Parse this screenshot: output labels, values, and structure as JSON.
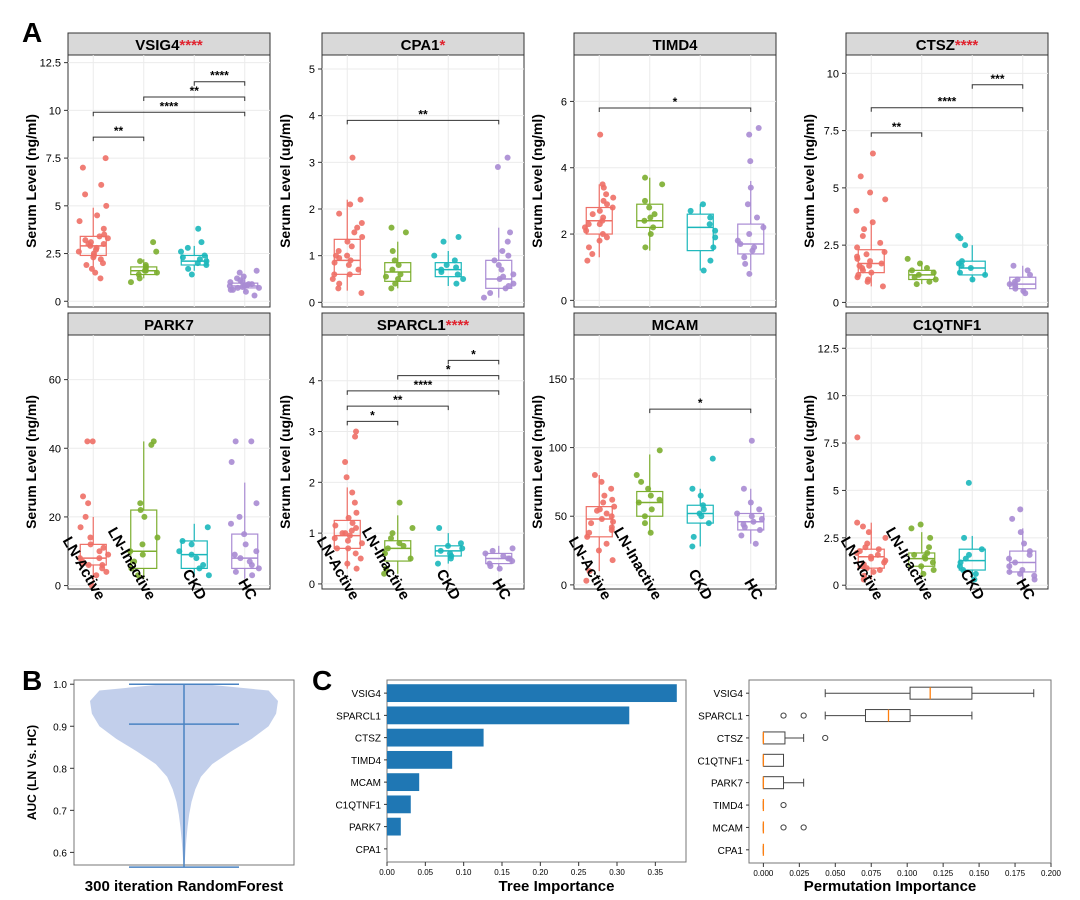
{
  "panels": {
    "a": "A",
    "b": "B",
    "c": "C"
  },
  "colors": {
    "LN-Active": "#ee6f66",
    "LN-Inactive": "#7cae2f",
    "CKD": "#1bb7bb",
    "HC": "#a98bd3",
    "strip": "#d9d9d9",
    "violin": "#b7c7e8",
    "violin_line": "#4a83c2",
    "bar": "#1f77b4",
    "median": "#ff7f0e",
    "sig_star": "#e0242f"
  },
  "chart_data": [
    {
      "type": "box",
      "title": "VSIG4",
      "sig": "****",
      "ylabel": "Serum Level (ng/ml)",
      "ylim": [
        -0.3,
        12.9
      ],
      "yticks": [
        0,
        2.5,
        5,
        7.5,
        10,
        12.5
      ],
      "ytick_labels": [
        "0",
        "2.5",
        "5",
        "7.5",
        "10",
        "12.5"
      ],
      "categories": [
        "LN-Active",
        "LN-Inactive",
        "CKD",
        "HC"
      ],
      "boxes": [
        [
          1.8,
          2.4,
          2.9,
          3.4,
          4.9
        ],
        [
          1.2,
          1.4,
          1.6,
          1.8,
          2.2
        ],
        [
          1.6,
          1.9,
          2.1,
          2.4,
          2.9
        ],
        [
          0.5,
          0.7,
          0.8,
          0.95,
          1.3
        ]
      ],
      "points": [
        [
          1.2,
          1.5,
          1.7,
          1.9,
          2.0,
          2.2,
          2.3,
          2.4,
          2.5,
          2.6,
          2.7,
          2.8,
          2.9,
          3.0,
          3.0,
          3.1,
          3.2,
          3.3,
          3.4,
          3.5,
          3.8,
          4.2,
          4.5,
          5.0,
          5.6,
          6.1,
          7.0,
          7.5
        ],
        [
          1.0,
          1.2,
          1.4,
          1.5,
          1.6,
          1.6,
          1.7,
          1.8,
          1.9,
          2.1,
          2.6,
          3.1
        ],
        [
          1.4,
          1.7,
          1.9,
          2.0,
          2.1,
          2.2,
          2.3,
          2.4,
          2.6,
          2.8,
          3.1,
          3.8
        ],
        [
          0.3,
          0.5,
          0.6,
          0.6,
          0.7,
          0.7,
          0.75,
          0.8,
          0.8,
          0.85,
          0.9,
          0.9,
          1.0,
          1.0,
          1.1,
          1.2,
          1.3,
          1.5,
          1.6
        ]
      ],
      "brackets": [
        {
          "from": 0,
          "to": 1,
          "y": 8.6,
          "label": "**"
        },
        {
          "from": 0,
          "to": 3,
          "y": 9.9,
          "label": "****"
        },
        {
          "from": 1,
          "to": 3,
          "y": 10.7,
          "label": "**"
        },
        {
          "from": 2,
          "to": 3,
          "y": 11.5,
          "label": "****"
        }
      ]
    },
    {
      "type": "box",
      "title": "CPA1",
      "sig": "*",
      "ylabel": "Serum Level (ug/ml)",
      "ylim": [
        -0.1,
        5.3
      ],
      "yticks": [
        0,
        1,
        2,
        3,
        4,
        5
      ],
      "ytick_labels": [
        "0",
        "1",
        "2",
        "3",
        "4",
        "5"
      ],
      "categories": [
        "LN-Active",
        "LN-Inactive",
        "CKD",
        "HC"
      ],
      "boxes": [
        [
          0.25,
          0.6,
          0.9,
          1.35,
          2.2
        ],
        [
          0.3,
          0.45,
          0.65,
          0.85,
          1.3
        ],
        [
          0.35,
          0.55,
          0.7,
          0.85,
          1.1
        ],
        [
          0.1,
          0.3,
          0.5,
          0.9,
          1.6
        ]
      ],
      "points": [
        [
          0.2,
          0.3,
          0.4,
          0.5,
          0.6,
          0.6,
          0.7,
          0.8,
          0.85,
          0.9,
          0.95,
          1.0,
          1.0,
          1.1,
          1.2,
          1.3,
          1.4,
          1.5,
          1.6,
          1.7,
          1.9,
          2.1,
          2.2,
          3.1
        ],
        [
          0.3,
          0.4,
          0.5,
          0.55,
          0.6,
          0.7,
          0.8,
          0.9,
          1.1,
          1.5,
          1.6
        ],
        [
          0.4,
          0.5,
          0.6,
          0.65,
          0.7,
          0.75,
          0.8,
          0.9,
          1.0,
          1.3,
          1.4
        ],
        [
          0.1,
          0.2,
          0.3,
          0.35,
          0.4,
          0.5,
          0.55,
          0.6,
          0.7,
          0.8,
          0.9,
          1.0,
          1.1,
          1.3,
          1.5,
          2.9,
          3.1
        ]
      ],
      "brackets": [
        {
          "from": 0,
          "to": 3,
          "y": 3.9,
          "label": "**"
        }
      ]
    },
    {
      "type": "box",
      "title": "TIMD4",
      "sig": "",
      "ylabel": "Serum Level (ng/ml)",
      "ylim": [
        -0.2,
        7.4
      ],
      "yticks": [
        0,
        2,
        4,
        6
      ],
      "ytick_labels": [
        "0",
        "2",
        "4",
        "6"
      ],
      "categories": [
        "LN-Active",
        "LN-Inactive",
        "CKD",
        "HC"
      ],
      "boxes": [
        [
          1.3,
          2.0,
          2.4,
          2.8,
          3.5
        ],
        [
          1.5,
          2.2,
          2.4,
          2.9,
          3.7
        ],
        [
          0.9,
          1.5,
          2.2,
          2.6,
          2.9
        ],
        [
          0.9,
          1.4,
          1.7,
          2.3,
          3.6
        ]
      ],
      "points": [
        [
          1.2,
          1.4,
          1.6,
          1.8,
          1.9,
          2.0,
          2.1,
          2.2,
          2.3,
          2.3,
          2.4,
          2.5,
          2.6,
          2.7,
          2.8,
          2.9,
          3.0,
          3.1,
          3.2,
          3.4,
          3.5,
          5.0
        ],
        [
          1.6,
          2.0,
          2.2,
          2.4,
          2.5,
          2.6,
          2.8,
          3.0,
          3.5,
          3.7
        ],
        [
          0.9,
          1.2,
          1.6,
          1.9,
          2.1,
          2.3,
          2.5,
          2.7,
          2.9
        ],
        [
          0.8,
          1.1,
          1.3,
          1.5,
          1.6,
          1.7,
          1.8,
          2.0,
          2.2,
          2.5,
          2.9,
          3.4,
          4.2,
          5.0,
          5.2
        ]
      ],
      "brackets": [
        {
          "from": 0,
          "to": 3,
          "y": 5.8,
          "label": "*"
        }
      ]
    },
    {
      "type": "box",
      "title": "CTSZ",
      "sig": "****",
      "ylabel": "Serum Level (ng/ml)",
      "ylim": [
        -0.2,
        10.8
      ],
      "yticks": [
        0,
        2.5,
        5,
        7.5,
        10
      ],
      "ytick_labels": [
        "0",
        "2.5",
        "5",
        "7.5",
        "10"
      ],
      "categories": [
        "LN-Active",
        "LN-Inactive",
        "CKD",
        "HC"
      ],
      "boxes": [
        [
          0.7,
          1.3,
          1.7,
          2.3,
          3.6
        ],
        [
          0.8,
          1.0,
          1.2,
          1.4,
          1.8
        ],
        [
          0.9,
          1.2,
          1.5,
          1.8,
          2.5
        ],
        [
          0.4,
          0.6,
          0.8,
          1.1,
          1.6
        ]
      ],
      "points": [
        [
          0.7,
          0.9,
          1.0,
          1.1,
          1.2,
          1.3,
          1.4,
          1.5,
          1.6,
          1.6,
          1.7,
          1.8,
          1.9,
          2.0,
          2.1,
          2.2,
          2.4,
          2.6,
          2.9,
          3.2,
          3.5,
          4.0,
          4.5,
          4.8,
          5.5,
          6.5
        ],
        [
          0.8,
          0.9,
          1.0,
          1.1,
          1.2,
          1.3,
          1.4,
          1.5,
          1.7,
          1.9
        ],
        [
          1.0,
          1.2,
          1.3,
          1.5,
          1.6,
          1.7,
          1.8,
          2.5,
          2.8,
          2.9
        ],
        [
          0.4,
          0.5,
          0.6,
          0.7,
          0.8,
          0.8,
          0.9,
          1.0,
          1.2,
          1.4,
          1.6
        ]
      ],
      "brackets": [
        {
          "from": 0,
          "to": 1,
          "y": 7.4,
          "label": "**"
        },
        {
          "from": 0,
          "to": 3,
          "y": 8.5,
          "label": "****"
        },
        {
          "from": 2,
          "to": 3,
          "y": 9.5,
          "label": "***"
        }
      ]
    },
    {
      "type": "box",
      "title": "PARK7",
      "sig": "",
      "ylabel": "Serum Level (ng/ml)",
      "ylim": [
        -1,
        73
      ],
      "yticks": [
        0,
        20,
        40,
        60
      ],
      "ytick_labels": [
        "0",
        "20",
        "40",
        "60"
      ],
      "categories": [
        "LN-Active",
        "LN-Inactive",
        "CKD",
        "HC"
      ],
      "boxes": [
        [
          1,
          6,
          8,
          12,
          20
        ],
        [
          2,
          5,
          10,
          22,
          42
        ],
        [
          3,
          5,
          9,
          13,
          18
        ],
        [
          2,
          5,
          8,
          15,
          30
        ]
      ],
      "points": [
        [
          0,
          3,
          4,
          5,
          6,
          6,
          7,
          8,
          8,
          9,
          10,
          11,
          12,
          14,
          17,
          20,
          24,
          26,
          42,
          42
        ],
        [
          3,
          5,
          7,
          9,
          10,
          12,
          14,
          20,
          22,
          24,
          41,
          42
        ],
        [
          3,
          5,
          6,
          8,
          9,
          10,
          12,
          13,
          17
        ],
        [
          3,
          4,
          5,
          6,
          7,
          8,
          9,
          10,
          12,
          15,
          18,
          20,
          24,
          36,
          42,
          42
        ]
      ],
      "brackets": []
    },
    {
      "type": "box",
      "title": "SPARCL1",
      "sig": "****",
      "ylabel": "Serum Level (ug/ml)",
      "ylim": [
        -0.1,
        4.9
      ],
      "yticks": [
        0,
        1,
        2,
        3,
        4
      ],
      "ytick_labels": [
        "0",
        "1",
        "2",
        "3",
        "4"
      ],
      "categories": [
        "LN-Active",
        "LN-Inactive",
        "CKD",
        "HC"
      ],
      "boxes": [
        [
          0.3,
          0.7,
          0.95,
          1.25,
          1.9
        ],
        [
          0.2,
          0.45,
          0.7,
          0.85,
          1.35
        ],
        [
          0.4,
          0.55,
          0.65,
          0.75,
          1.0
        ],
        [
          0.25,
          0.4,
          0.5,
          0.6,
          0.75
        ]
      ],
      "points": [
        [
          0.3,
          0.4,
          0.5,
          0.6,
          0.7,
          0.7,
          0.8,
          0.85,
          0.9,
          0.95,
          1.0,
          1.0,
          1.05,
          1.1,
          1.15,
          1.2,
          1.3,
          1.4,
          1.6,
          1.8,
          2.1,
          2.4,
          2.9,
          3.0
        ],
        [
          0.2,
          0.3,
          0.5,
          0.6,
          0.7,
          0.75,
          0.8,
          0.9,
          1.0,
          1.1,
          1.6
        ],
        [
          0.4,
          0.5,
          0.55,
          0.6,
          0.65,
          0.7,
          0.75,
          0.8,
          1.1
        ],
        [
          0.3,
          0.35,
          0.4,
          0.45,
          0.5,
          0.5,
          0.55,
          0.6,
          0.65,
          0.7
        ]
      ],
      "brackets": [
        {
          "from": 0,
          "to": 1,
          "y": 3.2,
          "label": "*"
        },
        {
          "from": 0,
          "to": 2,
          "y": 3.5,
          "label": "**"
        },
        {
          "from": 0,
          "to": 3,
          "y": 3.8,
          "label": "****"
        },
        {
          "from": 1,
          "to": 3,
          "y": 4.1,
          "label": "*"
        },
        {
          "from": 2,
          "to": 3,
          "y": 4.4,
          "label": "*"
        }
      ]
    },
    {
      "type": "box",
      "title": "MCAM",
      "sig": "",
      "ylabel": "Serum Level (ng/ml)",
      "ylim": [
        -3,
        182
      ],
      "yticks": [
        0,
        50,
        100,
        150
      ],
      "ytick_labels": [
        "0",
        "50",
        "100",
        "150"
      ],
      "categories": [
        "LN-Active",
        "LN-Inactive",
        "CKD",
        "HC"
      ],
      "boxes": [
        [
          10,
          35,
          48,
          57,
          80
        ],
        [
          38,
          50,
          60,
          68,
          95
        ],
        [
          28,
          45,
          52,
          58,
          70
        ],
        [
          30,
          40,
          46,
          52,
          70
        ]
      ],
      "points": [
        [
          3,
          10,
          18,
          25,
          30,
          35,
          38,
          40,
          42,
          45,
          46,
          48,
          50,
          52,
          54,
          55,
          57,
          60,
          62,
          65,
          70,
          75,
          80
        ],
        [
          38,
          45,
          50,
          55,
          60,
          62,
          65,
          70,
          75,
          80,
          98
        ],
        [
          28,
          35,
          45,
          50,
          52,
          55,
          58,
          65,
          70,
          92
        ],
        [
          30,
          36,
          40,
          42,
          44,
          46,
          48,
          50,
          52,
          55,
          60,
          70,
          105
        ]
      ],
      "brackets": [
        {
          "from": 1,
          "to": 3,
          "y": 128,
          "label": "*"
        }
      ]
    },
    {
      "type": "box",
      "title": "C1QTNF1",
      "sig": "",
      "ylabel": "Serum Level (ug/ml)",
      "ylim": [
        -0.2,
        13.2
      ],
      "yticks": [
        0,
        2.5,
        5,
        7.5,
        10,
        12.5
      ],
      "ytick_labels": [
        "0",
        "2.5",
        "5",
        "7.5",
        "10",
        "12.5"
      ],
      "categories": [
        "LN-Active",
        "LN-Inactive",
        "CKD",
        "HC"
      ],
      "boxes": [
        [
          0.3,
          0.9,
          1.5,
          1.9,
          3.3
        ],
        [
          0.6,
          1.0,
          1.4,
          1.7,
          2.8
        ],
        [
          0.3,
          0.8,
          1.3,
          1.9,
          2.6
        ],
        [
          0.3,
          0.7,
          1.2,
          1.8,
          3.0
        ]
      ],
      "points": [
        [
          0.3,
          0.5,
          0.7,
          0.8,
          0.9,
          1.0,
          1.1,
          1.2,
          1.3,
          1.4,
          1.5,
          1.6,
          1.7,
          1.8,
          1.9,
          2.0,
          2.2,
          2.5,
          2.8,
          3.1,
          3.3,
          7.8
        ],
        [
          0.6,
          0.8,
          1.0,
          1.2,
          1.4,
          1.5,
          1.6,
          1.7,
          2.0,
          2.5,
          3.0,
          3.2
        ],
        [
          0.3,
          0.6,
          0.8,
          1.0,
          1.2,
          1.4,
          1.6,
          1.9,
          2.5,
          5.4
        ],
        [
          0.3,
          0.5,
          0.6,
          0.7,
          0.8,
          1.0,
          1.2,
          1.4,
          1.6,
          1.8,
          2.2,
          2.8,
          3.5,
          4.0
        ]
      ],
      "brackets": []
    },
    {
      "type": "violin",
      "ylabel": "AUC (LN Vs. HC)",
      "xlabel": "300 iteration RandomForest",
      "ylim": [
        0.57,
        1.01
      ],
      "yticks": [
        0.6,
        0.7,
        0.8,
        0.9,
        1.0
      ],
      "ytick_labels": [
        "0.6",
        "0.7",
        "0.8",
        "0.9",
        "1.0"
      ],
      "min": 0.565,
      "max": 1.0,
      "median": 0.905
    },
    {
      "type": "bar",
      "xlabel": "Tree Importance",
      "categories": [
        "VSIG4",
        "SPARCL1",
        "CTSZ",
        "TIMD4",
        "MCAM",
        "C1QTNF1",
        "PARK7",
        "CPA1"
      ],
      "values": [
        0.378,
        0.316,
        0.126,
        0.085,
        0.042,
        0.031,
        0.018,
        0.0
      ],
      "xlim": [
        0,
        0.39
      ],
      "xticks": [
        0.0,
        0.05,
        0.1,
        0.15,
        0.2,
        0.25,
        0.3,
        0.35
      ],
      "xtick_labels": [
        "0.00",
        "0.05",
        "0.10",
        "0.15",
        "0.20",
        "0.25",
        "0.30",
        "0.35"
      ]
    },
    {
      "type": "box",
      "orientation": "horizontal",
      "xlabel": "Permutation Importance",
      "categories": [
        "VSIG4",
        "SPARCL1",
        "CTSZ",
        "C1QTNF1",
        "PARK7",
        "TIMD4",
        "MCAM",
        "CPA1"
      ],
      "boxes": [
        [
          0.043,
          0.102,
          0.116,
          0.145,
          0.188
        ],
        [
          0.043,
          0.071,
          0.087,
          0.102,
          0.145
        ],
        [
          0.0,
          0.0,
          0.0,
          0.015,
          0.028
        ],
        [
          0.0,
          0.0,
          0.0,
          0.014,
          0.014
        ],
        [
          0.0,
          0.0,
          0.0,
          0.014,
          0.028
        ],
        [
          0.0,
          0.0,
          0.0,
          0.0,
          0.0
        ],
        [
          0.0,
          0.0,
          0.0,
          0.0,
          0.0
        ],
        [
          0.0,
          0.0,
          0.0,
          0.0,
          0.0
        ]
      ],
      "outliers": [
        [],
        [
          0.014,
          0.028
        ],
        [
          0.043
        ],
        [],
        [],
        [
          0.014
        ],
        [
          0.014,
          0.028
        ],
        []
      ],
      "xlim": [
        -0.01,
        0.2
      ],
      "xticks": [
        0.0,
        0.025,
        0.05,
        0.075,
        0.1,
        0.125,
        0.15,
        0.175,
        0.2
      ],
      "xtick_labels": [
        "0.000",
        "0.025",
        "0.050",
        "0.075",
        "0.100",
        "0.125",
        "0.150",
        "0.175",
        "0.200"
      ]
    }
  ]
}
